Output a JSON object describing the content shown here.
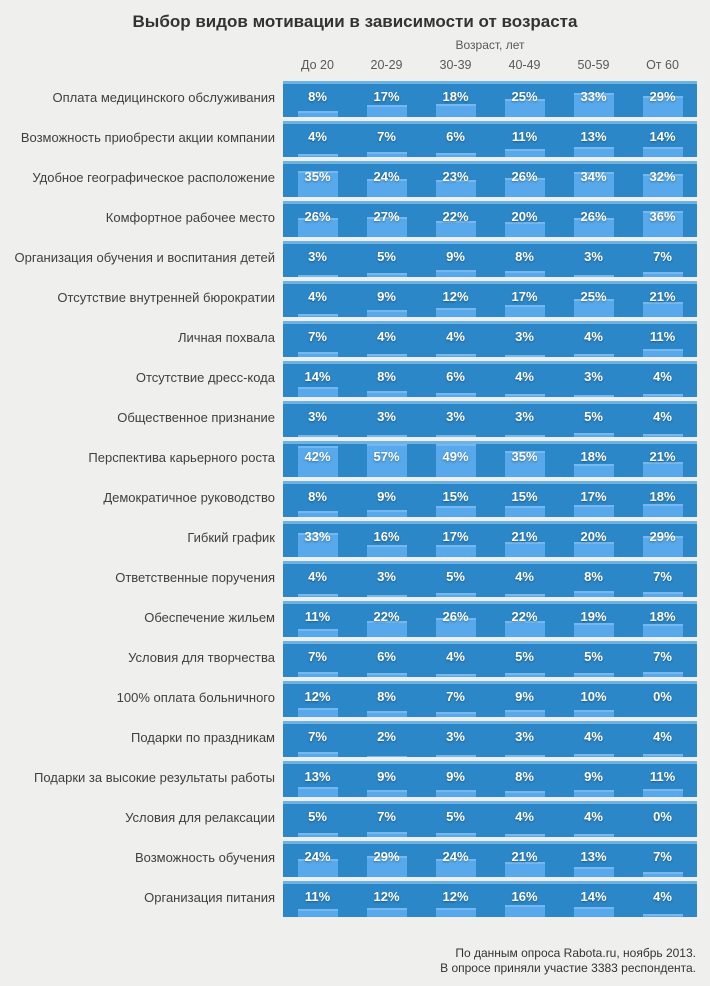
{
  "title": "Выбор видов мотивации в зависимости от возраста",
  "header": {
    "group_label": "Возраст, лет"
  },
  "footer": {
    "line1": "По данным опроса Rabota.ru, ноябрь 2013.",
    "line2": "В опросе приняли участие 3383 респондента."
  },
  "colors": {
    "background": "#efefed",
    "band": "#2c87c9",
    "band_top_edge": "#6db3e3",
    "bar": "#57a9ec",
    "value_text": "#ffffff",
    "label_text": "#404040",
    "header_text": "#58595b",
    "title_text": "#333333"
  },
  "chart_data": {
    "type": "heatmap",
    "title": "Выбор видов мотивации в зависимости от возраста",
    "xlabel": "Возраст, лет",
    "unit": "%",
    "value_scale_max": 45,
    "legend_position": "none",
    "categories": [
      "До 20",
      "20-29",
      "30-39",
      "40-49",
      "50-59",
      "От 60"
    ],
    "series": [
      {
        "name": "Оплата медицинского обслуживания",
        "values": [
          8,
          17,
          18,
          25,
          33,
          29
        ]
      },
      {
        "name": "Возможность приобрести акции компании",
        "values": [
          4,
          7,
          6,
          11,
          13,
          14
        ]
      },
      {
        "name": "Удобное географическое расположение",
        "values": [
          35,
          24,
          23,
          26,
          34,
          32
        ]
      },
      {
        "name": "Комфортное рабочее место",
        "values": [
          26,
          27,
          22,
          20,
          26,
          36
        ]
      },
      {
        "name": "Организация обучения и воспитания детей",
        "values": [
          3,
          5,
          9,
          8,
          3,
          7
        ]
      },
      {
        "name": "Отсутствие внутренней бюрократии",
        "values": [
          4,
          9,
          12,
          17,
          25,
          21
        ]
      },
      {
        "name": "Личная похвала",
        "values": [
          7,
          4,
          4,
          3,
          4,
          11
        ]
      },
      {
        "name": "Отсутствие дресс-кода",
        "values": [
          14,
          8,
          6,
          4,
          3,
          4
        ]
      },
      {
        "name": "Общественное признание",
        "values": [
          3,
          3,
          3,
          3,
          5,
          4
        ]
      },
      {
        "name": "Перспектива карьерного роста",
        "values": [
          42,
          57,
          49,
          35,
          18,
          21
        ]
      },
      {
        "name": "Демократичное руководство",
        "values": [
          8,
          9,
          15,
          15,
          17,
          18
        ]
      },
      {
        "name": "Гибкий график",
        "values": [
          33,
          16,
          17,
          21,
          20,
          29
        ]
      },
      {
        "name": "Ответственные поручения",
        "values": [
          4,
          3,
          5,
          4,
          8,
          7
        ]
      },
      {
        "name": "Обеспечение жильем",
        "values": [
          11,
          22,
          26,
          22,
          19,
          18
        ]
      },
      {
        "name": "Условия для творчества",
        "values": [
          7,
          6,
          4,
          5,
          5,
          7
        ]
      },
      {
        "name": "100% оплата больничного",
        "values": [
          12,
          8,
          7,
          9,
          10,
          0
        ]
      },
      {
        "name": "Подарки по праздникам",
        "values": [
          7,
          2,
          3,
          3,
          4,
          4
        ]
      },
      {
        "name": "Подарки за высокие результаты работы",
        "values": [
          13,
          9,
          9,
          8,
          9,
          11
        ]
      },
      {
        "name": "Условия для релаксации",
        "values": [
          5,
          7,
          5,
          4,
          4,
          0
        ]
      },
      {
        "name": "Возможность обучения",
        "values": [
          24,
          29,
          24,
          21,
          13,
          7
        ]
      },
      {
        "name": "Организация питания",
        "values": [
          11,
          12,
          12,
          16,
          14,
          4
        ]
      }
    ]
  }
}
